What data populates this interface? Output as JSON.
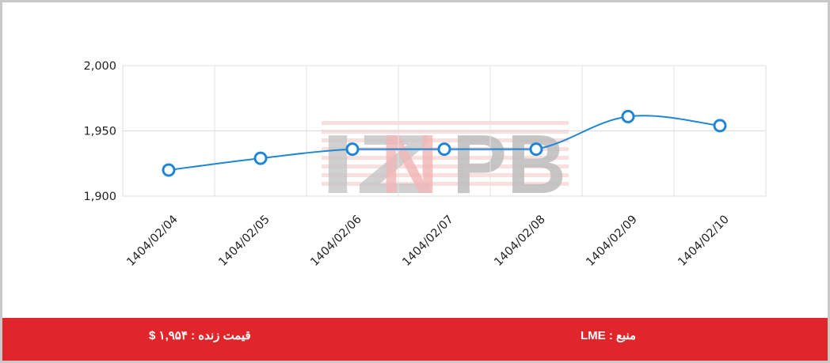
{
  "watermark": {
    "text": "IZNPB",
    "colors": {
      "iz": "#c8c8c8",
      "n": "#f2b8b8",
      "pb": "#bdbdbd",
      "stripes": "#f6caca"
    }
  },
  "footer": {
    "live_price": "قیمت زنده : ۱,۹۵۴ $",
    "source": "منبع : LME",
    "background": "#e0262b"
  },
  "chart_data": {
    "type": "line",
    "title": "",
    "xlabel": "",
    "ylabel": "",
    "categories": [
      "1404/02/04",
      "1404/02/05",
      "1404/02/06",
      "1404/02/07",
      "1404/02/08",
      "1404/02/09",
      "1404/02/10"
    ],
    "series": [
      {
        "values": [
          1920,
          1929,
          1936,
          1936,
          1936,
          1961,
          1954
        ],
        "color": "#1f86d6"
      }
    ],
    "ylim": [
      1900,
      2000
    ],
    "yticks": [
      1900,
      1950,
      2000
    ],
    "ytick_labels": [
      "1,900",
      "1,950",
      "2,000"
    ],
    "grid": true,
    "smooth": true,
    "legend": "none"
  }
}
